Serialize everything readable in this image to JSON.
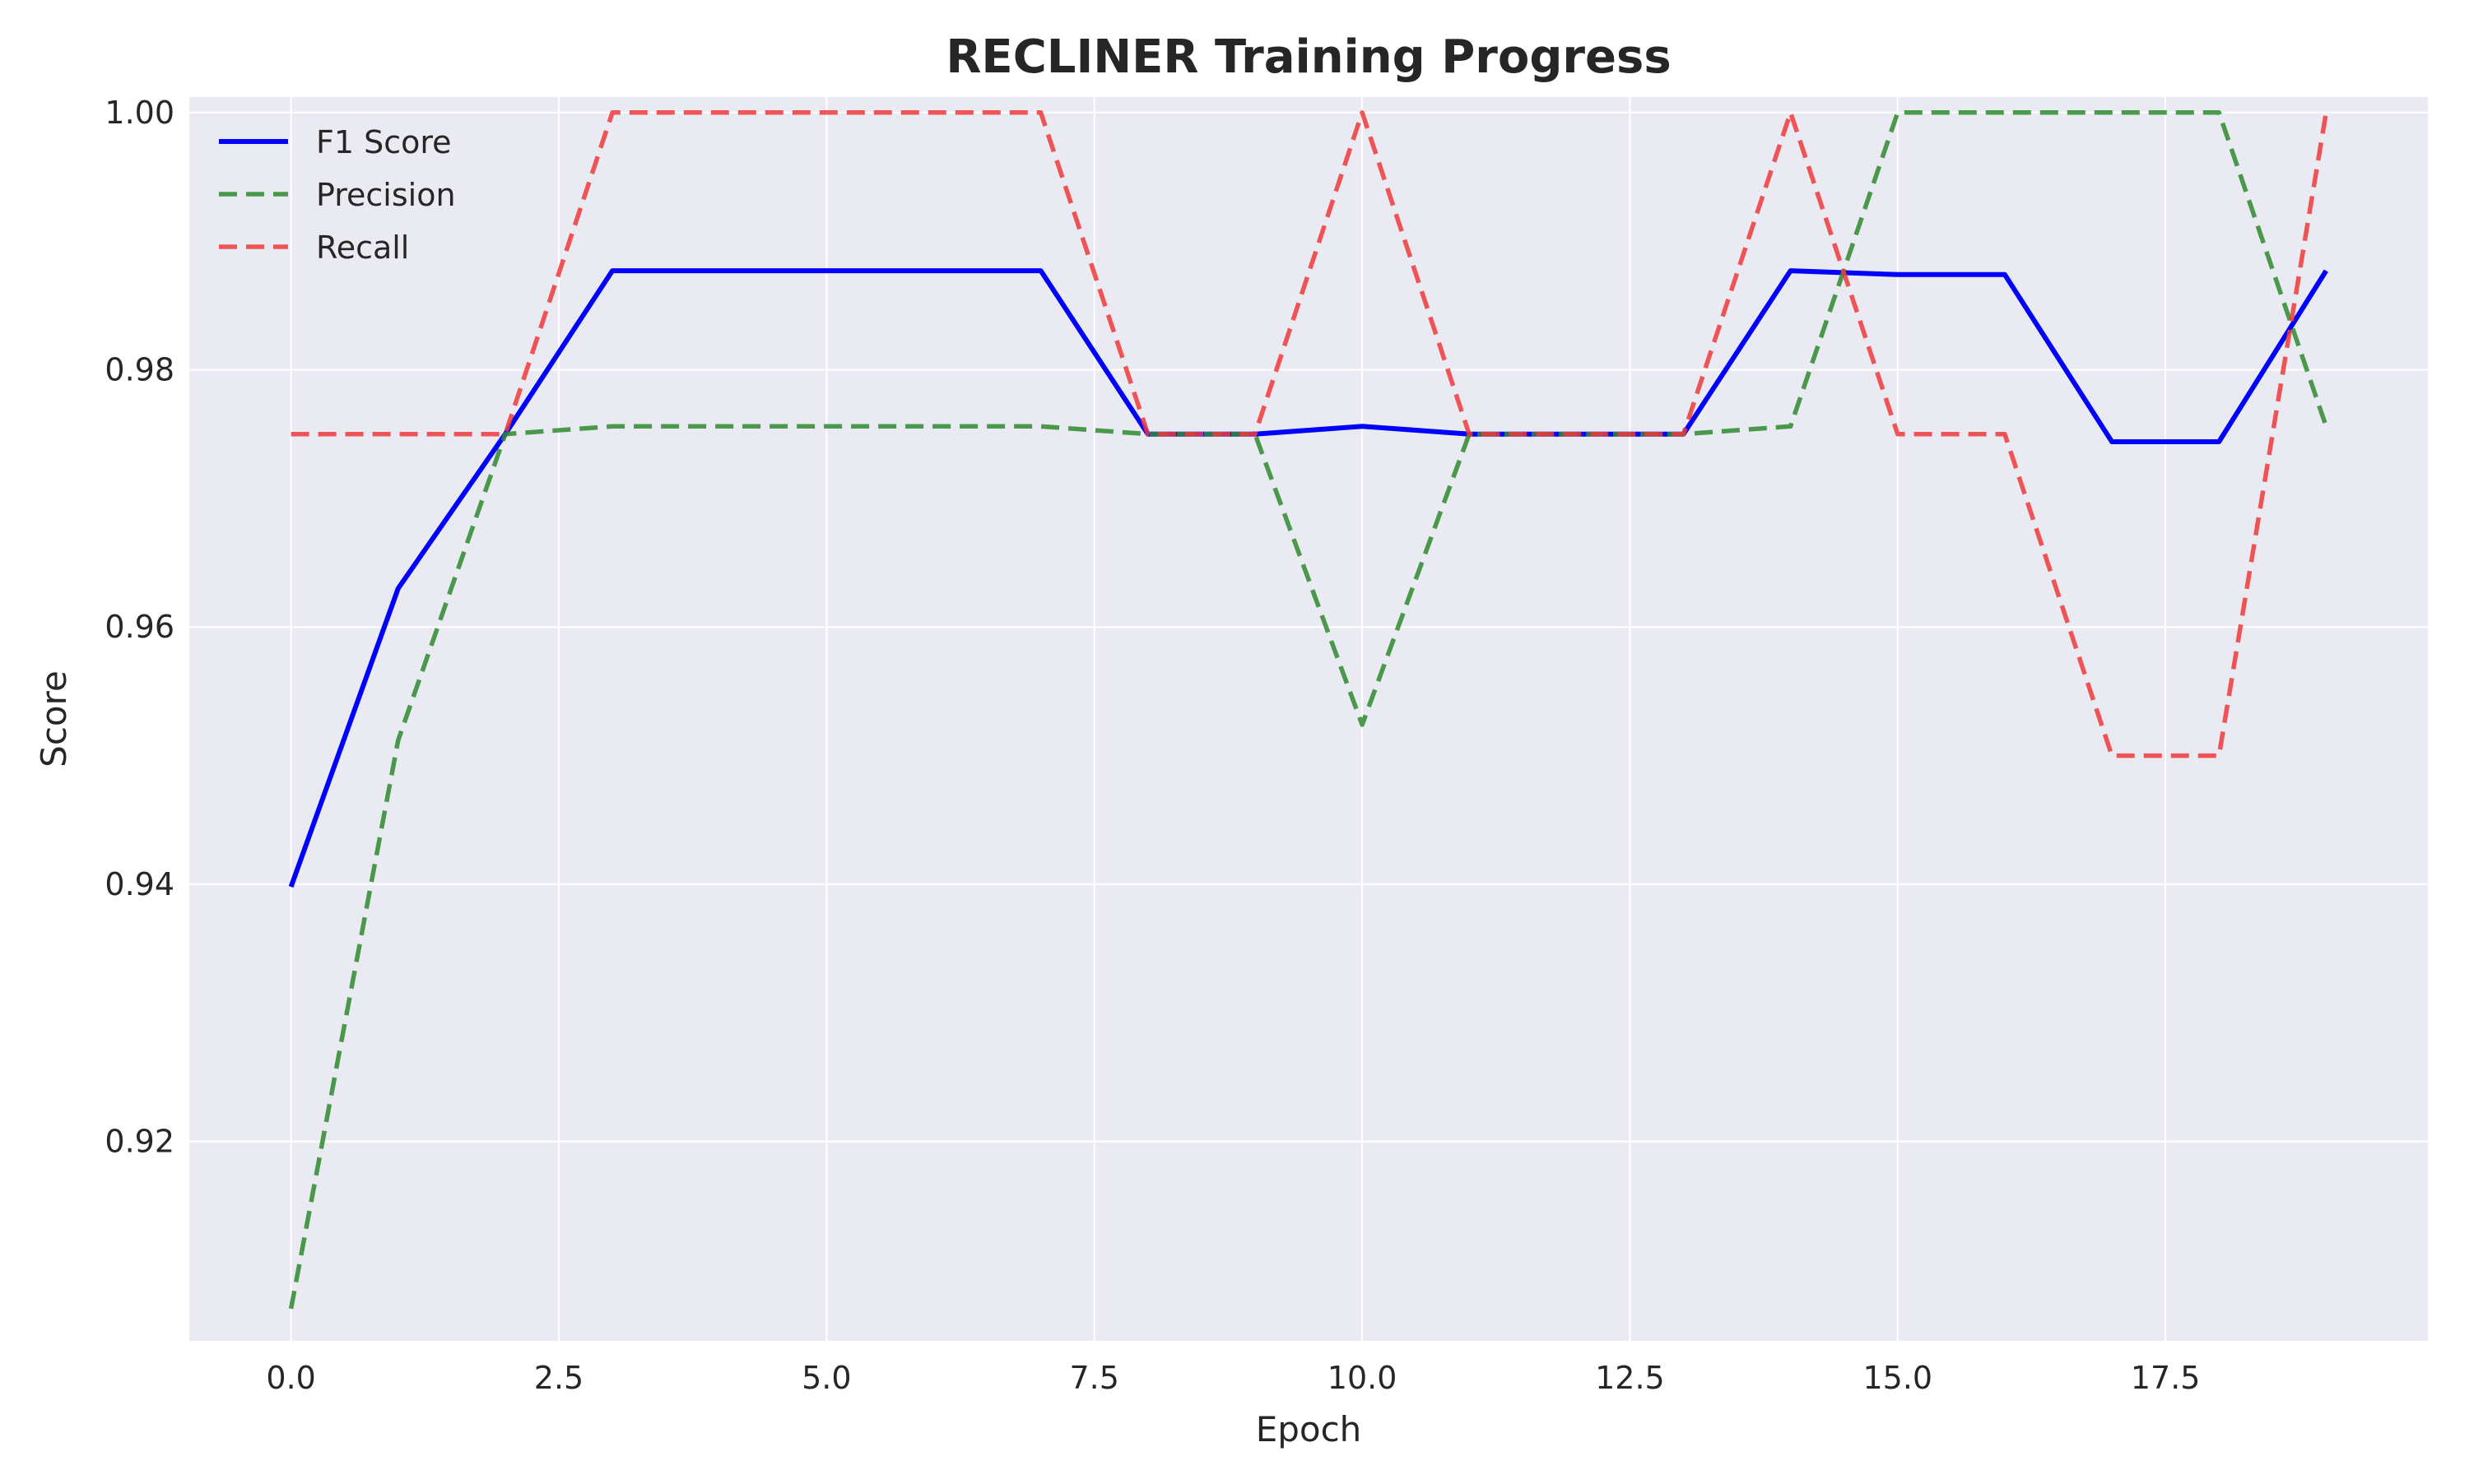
{
  "chart_data": {
    "type": "line",
    "title": "RECLINER Training Progress",
    "xlabel": "Epoch",
    "ylabel": "Score",
    "xlim": [
      -0.95,
      19.95
    ],
    "ylim": [
      0.9045,
      1.0012
    ],
    "xticks": [
      0.0,
      2.5,
      5.0,
      7.5,
      10.0,
      12.5,
      15.0,
      17.5
    ],
    "xtick_labels": [
      "0.0",
      "2.5",
      "5.0",
      "7.5",
      "10.0",
      "12.5",
      "15.0",
      "17.5"
    ],
    "yticks": [
      0.92,
      0.94,
      0.96,
      0.98,
      1.0
    ],
    "ytick_labels": [
      "0.92",
      "0.94",
      "0.96",
      "0.98",
      "1.00"
    ],
    "grid": true,
    "legend_position": "top-left",
    "background": "#eaeaf2",
    "x": [
      0,
      1,
      2,
      3,
      4,
      5,
      6,
      7,
      8,
      9,
      10,
      11,
      12,
      13,
      14,
      15,
      16,
      17,
      18,
      19
    ],
    "series": [
      {
        "name": "F1 Score",
        "style": "solid",
        "color": "#0000ff",
        "values": [
          0.9398,
          0.963,
          0.975,
          0.9877,
          0.9877,
          0.9877,
          0.9877,
          0.9877,
          0.975,
          0.975,
          0.9756,
          0.975,
          0.975,
          0.975,
          0.9877,
          0.9874,
          0.9874,
          0.9744,
          0.9744,
          0.9877
        ]
      },
      {
        "name": "Precision",
        "style": "dashed",
        "color": "#2e8b2e",
        "values": [
          0.907,
          0.9512,
          0.975,
          0.9756,
          0.9756,
          0.9756,
          0.9756,
          0.9756,
          0.975,
          0.975,
          0.9524,
          0.975,
          0.975,
          0.975,
          0.9756,
          1.0,
          1.0,
          1.0,
          1.0,
          0.9756
        ]
      },
      {
        "name": "Recall",
        "style": "dashed",
        "color": "#ee3a3a",
        "values": [
          0.975,
          0.975,
          0.975,
          1.0,
          1.0,
          1.0,
          1.0,
          1.0,
          0.975,
          0.975,
          1.0,
          0.975,
          0.975,
          0.975,
          1.0,
          0.975,
          0.975,
          0.95,
          0.95,
          1.0
        ]
      }
    ]
  }
}
